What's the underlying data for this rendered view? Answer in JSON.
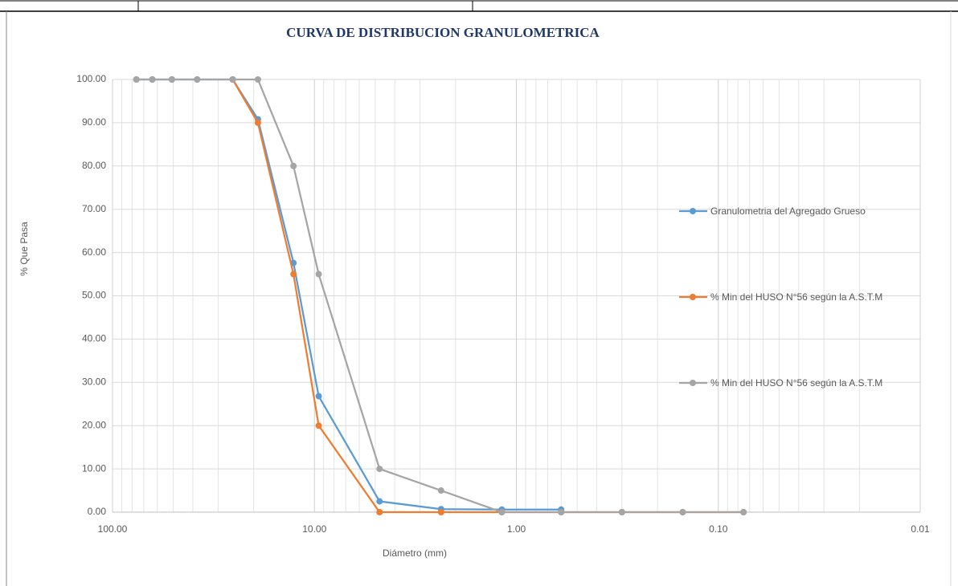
{
  "chart_data": {
    "type": "line",
    "title": "CURVA DE DISTRIBUCION  GRANULOMETRICA",
    "x_label": "Diámetro (mm)",
    "y_label": "% Que Pasa",
    "x": [
      76.2,
      63.5,
      50.8,
      38.1,
      25.4,
      19.05,
      12.7,
      9.525,
      4.76,
      2.36,
      1.18,
      0.6,
      0.3,
      0.15,
      0.075
    ],
    "series": [
      {
        "name": "Granulometria del Agregado Grueso",
        "color": "#5b9bd5",
        "values": [
          100,
          100,
          100,
          100,
          100,
          90.8,
          57.6,
          26.8,
          2.5,
          0.7,
          0.6,
          0.6,
          null,
          null,
          null
        ]
      },
      {
        "name": "% Min del HUSO N°56 según la A.S.T.M",
        "color": "#ed7d31",
        "values": [
          null,
          null,
          null,
          null,
          100,
          90,
          55,
          20,
          0,
          0,
          0,
          0,
          0,
          0,
          0
        ]
      },
      {
        "name": "% Min del HUSO N°56 según la A.S.T.M",
        "color": "#a5a5a5",
        "values": [
          100,
          100,
          100,
          100,
          100,
          100,
          80,
          55,
          10,
          5,
          0,
          0,
          0,
          0,
          0
        ]
      }
    ],
    "log_x": true,
    "xlim": [
      100,
      0.01
    ],
    "xticks": [
      {
        "value": 100,
        "label": "100.00"
      },
      {
        "value": 10,
        "label": "10.00"
      },
      {
        "value": 1,
        "label": "1.00"
      },
      {
        "value": 0.1,
        "label": "0.10"
      },
      {
        "value": 0.01,
        "label": "0.01"
      }
    ],
    "xminorticks": [
      90,
      80,
      70,
      60,
      50,
      40,
      30,
      20,
      9,
      8,
      7,
      6,
      5,
      4,
      3,
      2,
      0.9,
      0.8,
      0.7,
      0.6,
      0.5,
      0.4,
      0.3,
      0.2,
      0.09,
      0.08,
      0.07,
      0.06,
      0.05,
      0.04,
      0.03,
      0.02
    ],
    "ylim": [
      0,
      100
    ],
    "yticks": [
      {
        "value": 0,
        "label": "0.00"
      },
      {
        "value": 10,
        "label": "10.00"
      },
      {
        "value": 20,
        "label": "20.00"
      },
      {
        "value": 30,
        "label": "30.00"
      },
      {
        "value": 40,
        "label": "40.00"
      },
      {
        "value": 50,
        "label": "50.00"
      },
      {
        "value": 60,
        "label": "60.00"
      },
      {
        "value": 70,
        "label": "70.00"
      },
      {
        "value": 80,
        "label": "80.00"
      },
      {
        "value": 90,
        "label": "90.00"
      },
      {
        "value": 100,
        "label": "100.00"
      }
    ],
    "grid": true,
    "legend": "right"
  }
}
